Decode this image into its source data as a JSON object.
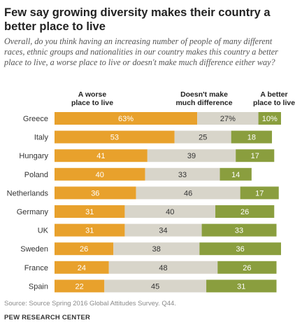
{
  "title": "Few say growing diversity makes their country a better place to live",
  "subtitle": "Overall, do you think having an increasing number of people of many different races, ethnic groups and nationalities in our country makes this country a better place to live, a worse place to live or doesn't make much difference either way?",
  "source": "Source: Source Spring 2016 Global Attitudes Survey. Q44.",
  "brand": "PEW RESEARCH CENTER",
  "colors": {
    "worse": "#E8A12C",
    "no_difference": "#D8D5CA",
    "better": "#8A9E3E"
  },
  "chart_data": {
    "type": "bar",
    "orientation": "horizontal",
    "stacked": true,
    "xlim": [
      0,
      100
    ],
    "categories": [
      "Greece",
      "Italy",
      "Hungary",
      "Poland",
      "Netherlands",
      "Germany",
      "UK",
      "Sweden",
      "France",
      "Spain"
    ],
    "series": [
      {
        "name": "A worse place to live",
        "values": [
          63,
          53,
          41,
          40,
          36,
          31,
          31,
          26,
          24,
          22
        ],
        "labels": [
          "63%",
          "53",
          "41",
          "40",
          "36",
          "31",
          "31",
          "26",
          "24",
          "22"
        ]
      },
      {
        "name": "Doesn't make much difference",
        "values": [
          27,
          25,
          39,
          33,
          46,
          40,
          34,
          38,
          48,
          45
        ],
        "labels": [
          "27%",
          "25",
          "39",
          "33",
          "46",
          "40",
          "34",
          "38",
          "48",
          "45"
        ]
      },
      {
        "name": "A better place to live",
        "values": [
          10,
          18,
          17,
          14,
          17,
          26,
          33,
          36,
          26,
          31
        ],
        "labels": [
          "10%",
          "18",
          "17",
          "14",
          "17",
          "26",
          "33",
          "36",
          "26",
          "31"
        ]
      }
    ],
    "legend_placement": "top",
    "grid": false
  }
}
